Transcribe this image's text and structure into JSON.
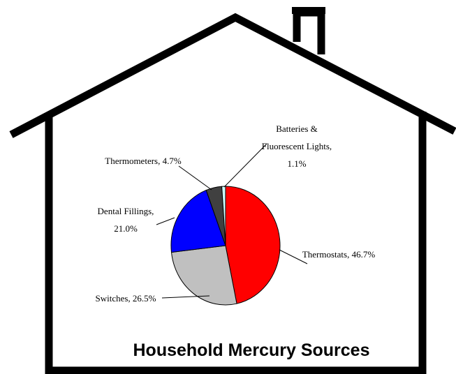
{
  "chart_data": {
    "type": "pie",
    "title": "Household Mercury Sources",
    "labels": [
      "Thermostats, 46.7%",
      "Switches, 26.5%",
      "Dental Fillings, 21.0%",
      "Thermometers, 4.7%",
      "Batteries & Fluorescent Lights, 1.1%"
    ],
    "values": [
      46.7,
      26.5,
      21.0,
      4.7,
      1.1
    ],
    "colors": [
      "#ff0000",
      "#c0c0c0",
      "#0000ff",
      "#404040",
      "#ccffff"
    ]
  }
}
